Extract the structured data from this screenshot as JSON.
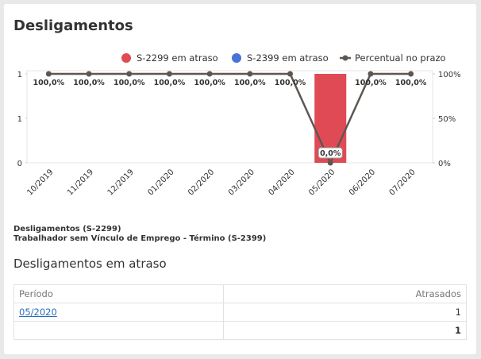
{
  "title": "Desligamentos",
  "chart_data": {
    "type": "bar",
    "categories": [
      "10/2019",
      "11/2019",
      "12/2019",
      "01/2020",
      "02/2020",
      "03/2020",
      "04/2020",
      "05/2020",
      "06/2020",
      "07/2020"
    ],
    "series": [
      {
        "name": "S-2299 em atraso",
        "color": "#e04a55",
        "type": "bar",
        "values": [
          0,
          0,
          0,
          0,
          0,
          0,
          0,
          1,
          0,
          0
        ]
      },
      {
        "name": "S-2399 em atraso",
        "color": "#4a73d9",
        "type": "bar",
        "values": [
          0,
          0,
          0,
          0,
          0,
          0,
          0,
          0,
          0,
          0
        ]
      },
      {
        "name": "Percentual no prazo",
        "color": "#5f5651",
        "type": "line",
        "axis": "y2",
        "values": [
          100,
          100,
          100,
          100,
          100,
          100,
          100,
          0,
          100,
          100
        ],
        "value_labels": [
          "100,0%",
          "100,0%",
          "100,0%",
          "100,0%",
          "100,0%",
          "100,0%",
          "100,0%",
          "0,0%",
          "100,0%",
          "100,0%"
        ]
      }
    ],
    "ylim": [
      0,
      1
    ],
    "yticks": [
      0,
      {
        "value": 0.5,
        "label": "1"
      },
      1
    ],
    "y2lim": [
      0,
      100
    ],
    "y2ticks": [
      {
        "value": 0,
        "label": "0%"
      },
      {
        "value": 50,
        "label": "50%"
      },
      {
        "value": 100,
        "label": "100%"
      }
    ],
    "legend": "top-right"
  },
  "notes": [
    "Desligamentos (S-2299)",
    "Trabalhador sem Vínculo de Emprego - Término (S-2399)"
  ],
  "section_title": "Desligamentos em atraso",
  "table": {
    "columns": [
      "Período",
      "Atrasados"
    ],
    "rows": [
      [
        "05/2020",
        1
      ]
    ],
    "total": 1
  }
}
